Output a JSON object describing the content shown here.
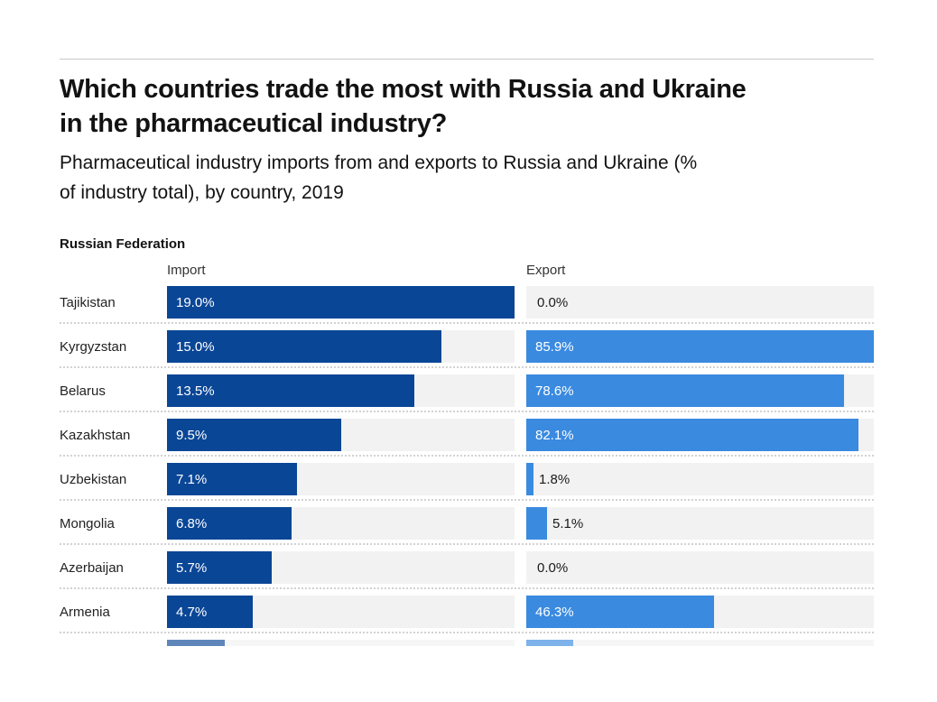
{
  "header": {
    "title_lines": [
      "Which countries trade the most with Russia and Ukraine",
      "in the pharmaceutical industry?"
    ],
    "subtitle_lines": [
      "Pharmaceutical industry imports from and exports to Russia and Ukraine (%",
      "of industry total), by country, 2019"
    ]
  },
  "chart_data": {
    "type": "bar",
    "layout": "paired horizontal bar columns, each column scaled to its own maximum",
    "group_label": "Russian Federation",
    "column_headers": [
      "Import",
      "Export"
    ],
    "categories": [
      "Tajikistan",
      "Kyrgyzstan",
      "Belarus",
      "Kazakhstan",
      "Uzbekistan",
      "Mongolia",
      "Azerbaijan",
      "Armenia"
    ],
    "series": [
      {
        "name": "Import",
        "axis_max": 19.0,
        "color": "#0a4696",
        "values": [
          19.0,
          15.0,
          13.5,
          9.5,
          7.1,
          6.8,
          5.7,
          4.7
        ],
        "labels": [
          "19.0%",
          "15.0%",
          "13.5%",
          "9.5%",
          "7.1%",
          "6.8%",
          "5.7%",
          "4.7%"
        ]
      },
      {
        "name": "Export",
        "axis_max": 85.9,
        "color": "#3a8ae0",
        "values": [
          0.0,
          85.9,
          78.6,
          82.1,
          1.8,
          5.1,
          0.0,
          46.3
        ],
        "labels": [
          "0.0%",
          "85.9%",
          "78.6%",
          "82.1%",
          "1.8%",
          "5.1%",
          "0.0%",
          "46.3%"
        ]
      }
    ],
    "clipped_next_row": {
      "import_width_frac": 0.165,
      "export_width_frac": 0.135
    }
  },
  "style": {
    "bar_import_color": "#0a4696",
    "bar_export_color": "#3a8ae0",
    "track_color": "#f2f2f2",
    "inside_label_color": "#ffffff",
    "outside_label_color": "#1a1a1a"
  }
}
